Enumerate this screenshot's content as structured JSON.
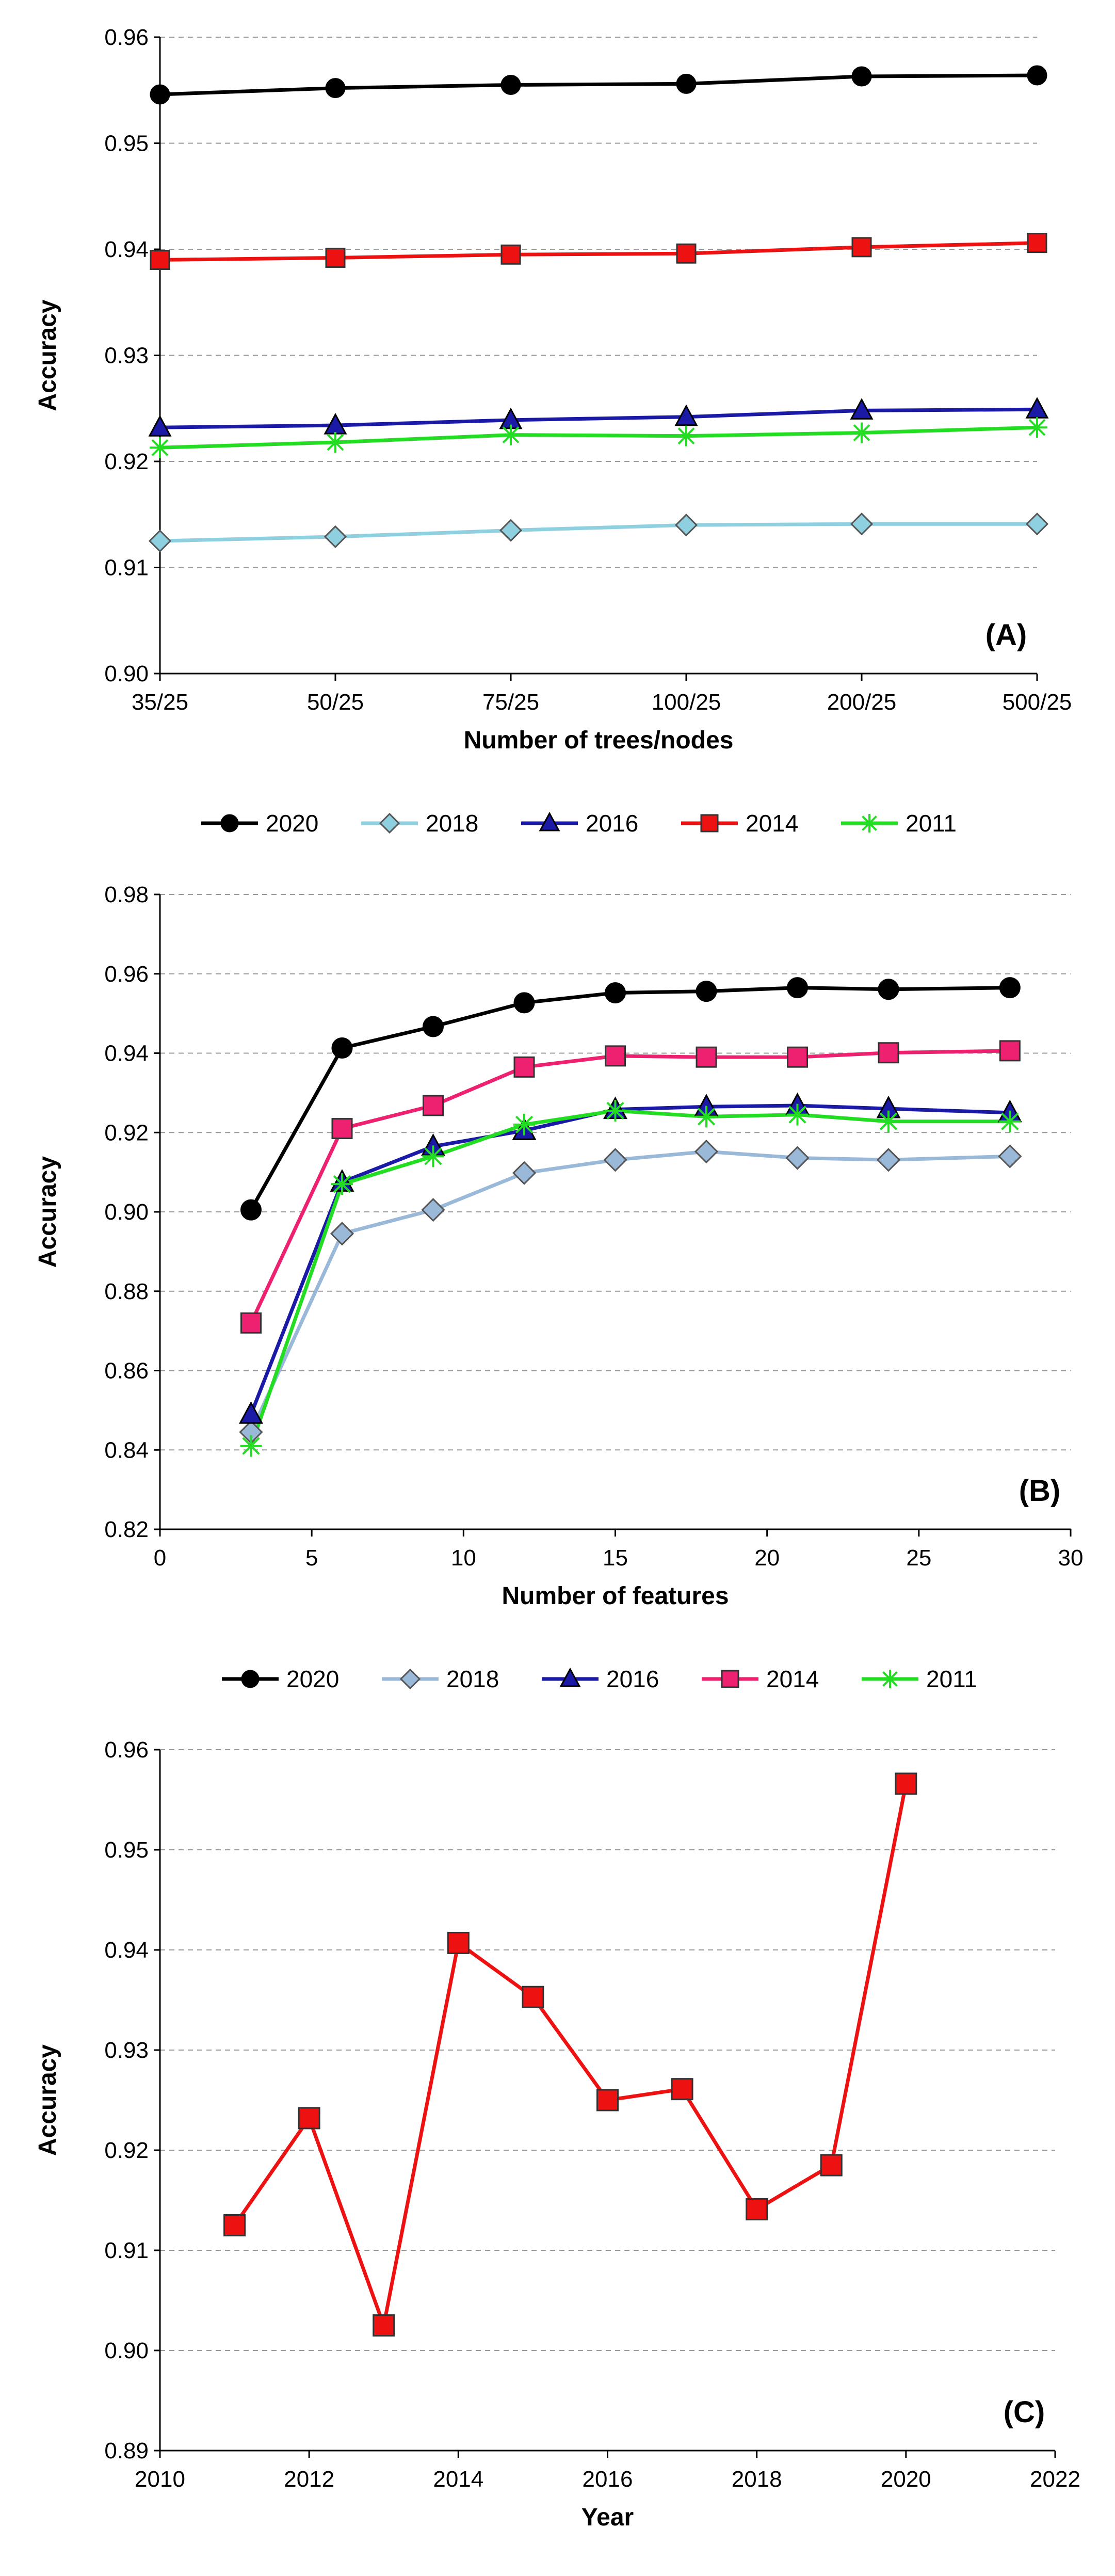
{
  "colors": {
    "2020": "#000000",
    "2018_a": "#8ecfe0",
    "2018_b": "#9ab8d8",
    "2016": "#1a1aa6",
    "2014_a": "#ee1111",
    "2014_b": "#ee2070",
    "2011": "#22dd22",
    "grid": "#999999",
    "axis": "#000000"
  },
  "chart_data": [
    {
      "panel": "(A)",
      "type": "line",
      "xlabel": "Number of trees/nodes",
      "ylabel": "Accuracy",
      "categories": [
        "35/25",
        "50/25",
        "75/25",
        "100/25",
        "200/25",
        "500/25"
      ],
      "ylim": [
        0.9,
        0.96
      ],
      "yticks": [
        "0.90",
        "0.91",
        "0.92",
        "0.93",
        "0.94",
        "0.95",
        "0.96"
      ],
      "grid": true,
      "series": [
        {
          "name": "2020",
          "marker": "circle",
          "color": "#000000",
          "fill": "#000000",
          "markerFill": "#000000",
          "values": [
            0.9546,
            0.9552,
            0.9555,
            0.9556,
            0.9563,
            0.9564
          ]
        },
        {
          "name": "2018",
          "marker": "diamond",
          "color": "#8ecfe0",
          "fill": "#8ecfe0",
          "markerFill": "#8ecfe0",
          "values": [
            0.9125,
            0.9129,
            0.9135,
            0.914,
            0.9141,
            0.9141
          ]
        },
        {
          "name": "2016",
          "marker": "triangle",
          "color": "#1a1aa6",
          "fill": "#1a1aa6",
          "markerFill": "#1a1aa6",
          "values": [
            0.9232,
            0.9234,
            0.9239,
            0.9242,
            0.9248,
            0.9249
          ]
        },
        {
          "name": "2014",
          "marker": "square",
          "color": "#ee1111",
          "fill": "#ee1111",
          "markerFill": "#ee1111",
          "values": [
            0.939,
            0.9392,
            0.9395,
            0.9396,
            0.9402,
            0.9406
          ]
        },
        {
          "name": "2011",
          "marker": "star",
          "color": "#22dd22",
          "fill": "#22dd22",
          "markerFill": "#22dd22",
          "values": [
            0.9213,
            0.9218,
            0.9225,
            0.9224,
            0.9227,
            0.9232
          ]
        }
      ],
      "legend": [
        "2020",
        "2018",
        "2016",
        "2014",
        "2011"
      ]
    },
    {
      "panel": "(B)",
      "type": "line",
      "xlabel": "Number of features",
      "ylabel": "Accuracy",
      "x": [
        3,
        6,
        9,
        12,
        15,
        18,
        21,
        24,
        28
      ],
      "xlim": [
        0,
        30
      ],
      "xticks": [
        "0",
        "5",
        "10",
        "15",
        "20",
        "25",
        "30"
      ],
      "ylim": [
        0.82,
        0.98
      ],
      "yticks": [
        "0.82",
        "0.84",
        "0.86",
        "0.88",
        "0.90",
        "0.92",
        "0.94",
        "0.96",
        "0.98"
      ],
      "grid": true,
      "series": [
        {
          "name": "2020",
          "marker": "circle",
          "color": "#000000",
          "markerFill": "#000000",
          "values": [
            0.9005,
            0.9413,
            0.9467,
            0.9527,
            0.9552,
            0.9556,
            0.9565,
            0.9561,
            0.9565
          ]
        },
        {
          "name": "2018",
          "marker": "diamond",
          "color": "#9ab8d8",
          "markerFill": "#9ab8d8",
          "values": [
            0.8445,
            0.8945,
            0.9005,
            0.9098,
            0.9131,
            0.9152,
            0.9136,
            0.9131,
            0.914
          ]
        },
        {
          "name": "2016",
          "marker": "triangle",
          "color": "#1a1aa6",
          "markerFill": "#1a1aa6",
          "values": [
            0.849,
            0.9075,
            0.9165,
            0.9205,
            0.9258,
            0.9265,
            0.9268,
            0.926,
            0.925
          ]
        },
        {
          "name": "2014",
          "marker": "square",
          "color": "#ee2070",
          "markerFill": "#ee2070",
          "values": [
            0.872,
            0.921,
            0.9268,
            0.9365,
            0.9393,
            0.939,
            0.939,
            0.9401,
            0.9406
          ]
        },
        {
          "name": "2011",
          "marker": "star",
          "color": "#22dd22",
          "markerFill": "#22dd22",
          "values": [
            0.841,
            0.907,
            0.914,
            0.922,
            0.9255,
            0.924,
            0.9245,
            0.9228,
            0.9228
          ]
        }
      ],
      "legend": [
        "2020",
        "2018",
        "2016",
        "2014",
        "2011"
      ]
    },
    {
      "panel": "(C)",
      "type": "line",
      "xlabel": "Year",
      "ylabel": "Accuracy",
      "x": [
        2011,
        2012,
        2013,
        2014,
        2015,
        2016,
        2017,
        2018,
        2019,
        2020
      ],
      "xlim": [
        2010,
        2022
      ],
      "xticks": [
        "2010",
        "2012",
        "2014",
        "2016",
        "2018",
        "2020",
        "2022"
      ],
      "ylim": [
        0.89,
        0.96
      ],
      "yticks": [
        "0.89",
        "0.90",
        "0.91",
        "0.92",
        "0.93",
        "0.94",
        "0.95",
        "0.96"
      ],
      "grid": true,
      "series": [
        {
          "name": "Accuracy",
          "marker": "square",
          "color": "#ee1111",
          "markerFill": "#ee1111",
          "values": [
            0.9125,
            0.9232,
            0.9025,
            0.9407,
            0.9353,
            0.925,
            0.9261,
            0.9141,
            0.9185,
            0.9566
          ]
        }
      ]
    }
  ]
}
